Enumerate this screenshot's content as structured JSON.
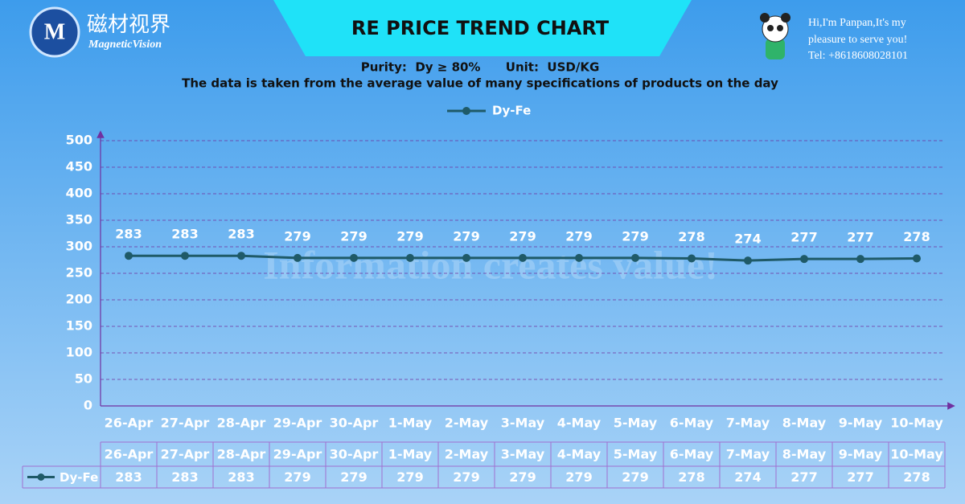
{
  "branding": {
    "logo_cn": "磁材视界",
    "logo_en": "MagneticVision",
    "greeting": [
      "Hi,I'm Panpan,It's my",
      "pleasure to serve you!",
      "Tel: +8618608028101"
    ],
    "watermark": "Information creates value!"
  },
  "chart_data": {
    "type": "line",
    "title": "RE PRICE TREND CHART",
    "subtitle": "Purity:  Dy ≥ 80%      Unit:  USD/KG",
    "note": "The data is taken from the average value of  many specifications of products on the day",
    "categories": [
      "26-Apr",
      "27-Apr",
      "28-Apr",
      "29-Apr",
      "30-Apr",
      "1-May",
      "2-May",
      "3-May",
      "4-May",
      "5-May",
      "6-May",
      "7-May",
      "8-May",
      "9-May",
      "10-May"
    ],
    "series": [
      {
        "name": "Dy-Fe",
        "color": "#1f5a68",
        "values": [
          283,
          283,
          283,
          279,
          279,
          279,
          279,
          279,
          279,
          279,
          278,
          274,
          277,
          277,
          278
        ]
      }
    ],
    "ylim": [
      0,
      500
    ],
    "yticks": [
      0,
      50,
      100,
      150,
      200,
      250,
      300,
      350,
      400,
      450,
      500
    ],
    "grid": true
  }
}
